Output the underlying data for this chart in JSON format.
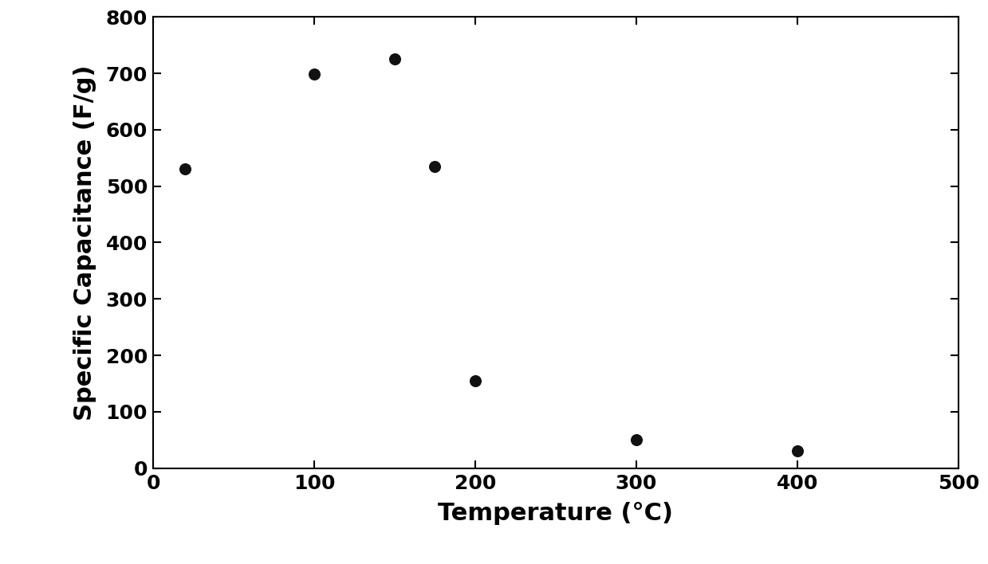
{
  "x_values": [
    20,
    100,
    150,
    175,
    200,
    300,
    400
  ],
  "y_values": [
    530,
    698,
    725,
    535,
    155,
    50,
    30
  ],
  "xlabel": "Temperature (°C)",
  "ylabel": "Specific Capacitance (F/g)",
  "xlim": [
    0,
    500
  ],
  "ylim": [
    0,
    800
  ],
  "xticks": [
    0,
    100,
    200,
    300,
    400,
    500
  ],
  "yticks": [
    0,
    100,
    200,
    300,
    400,
    500,
    600,
    700,
    800
  ],
  "marker": "o",
  "marker_color": "#111111",
  "marker_size": 8,
  "background_color": "#ffffff",
  "xlabel_fontsize": 22,
  "ylabel_fontsize": 22,
  "tick_fontsize": 18,
  "font_family": "Arial Black"
}
